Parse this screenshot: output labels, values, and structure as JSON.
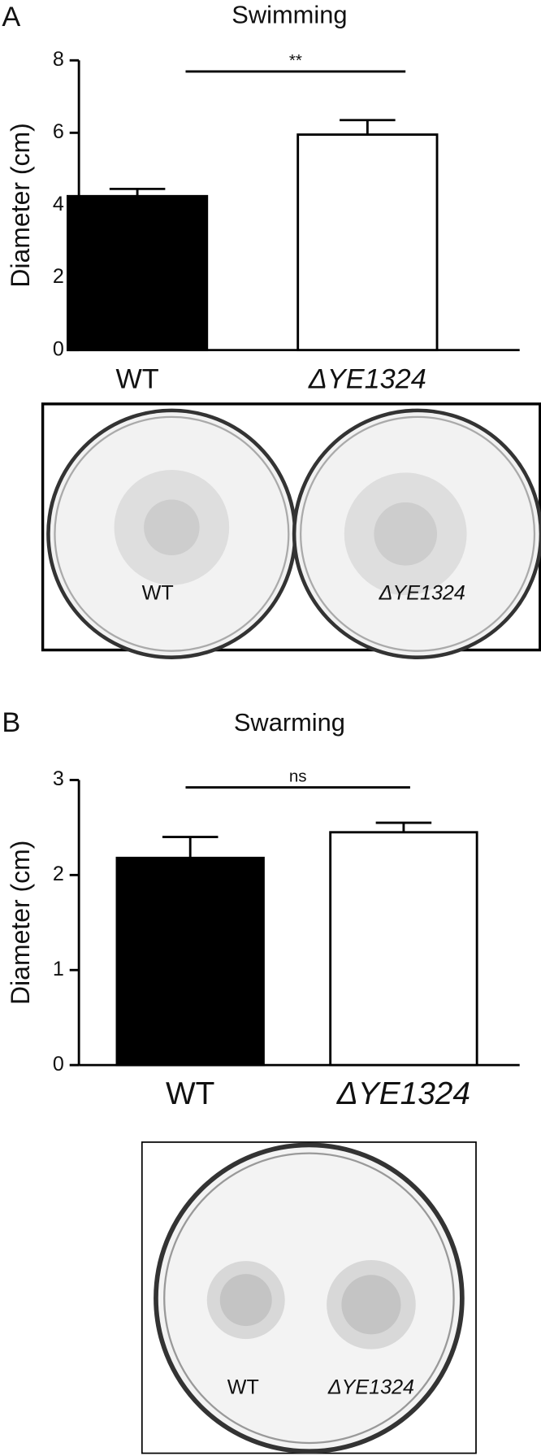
{
  "chart_data": [
    {
      "type": "bar",
      "panel_label": "A",
      "title": "Swimming",
      "y_label": "Diameter (cm)",
      "categories": [
        "WT",
        "ΔYE1324"
      ],
      "values": [
        4.25,
        5.95
      ],
      "errors": [
        0.2,
        0.4
      ],
      "colors": [
        "#000000",
        "#ffffff"
      ],
      "significance": "**",
      "ylim": [
        0,
        8
      ],
      "yticks": [
        0,
        2,
        4,
        6,
        8
      ],
      "image_labels": [
        "WT",
        "ΔYE1324"
      ]
    },
    {
      "type": "bar",
      "panel_label": "B",
      "title": "Swarming",
      "y_label": "Diameter (cm)",
      "categories": [
        "WT",
        "ΔYE1324"
      ],
      "values": [
        2.18,
        2.45
      ],
      "errors": [
        0.22,
        0.1
      ],
      "colors": [
        "#000000",
        "#ffffff"
      ],
      "significance": "ns",
      "ylim": [
        0,
        3
      ],
      "yticks": [
        0,
        1,
        2,
        3
      ],
      "image_labels": [
        "WT",
        "ΔYE1324"
      ]
    }
  ]
}
